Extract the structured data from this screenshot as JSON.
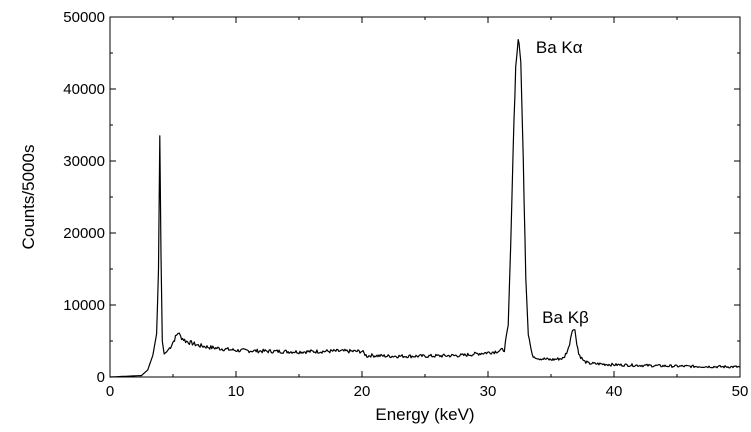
{
  "chart_data": {
    "type": "line",
    "xlabel": "Energy (keV)",
    "ylabel": "Counts/5000s",
    "xlim": [
      0,
      50
    ],
    "ylim": [
      0,
      50000
    ],
    "x_ticks": [
      0,
      10,
      20,
      30,
      40,
      50
    ],
    "y_ticks": [
      0,
      10000,
      20000,
      30000,
      40000,
      50000
    ],
    "grid": false,
    "series": [
      {
        "color": "#000000",
        "x": [
          0,
          2.5,
          3.0,
          3.4,
          3.7,
          3.85,
          3.95,
          4.05,
          4.15,
          4.3,
          4.5,
          4.8,
          5.2,
          5.4,
          5.6,
          6.0,
          7,
          8,
          10,
          12,
          15,
          18,
          20,
          20.4,
          20.7,
          22,
          25,
          28,
          29.5,
          30.5,
          31.3,
          31.6,
          31.8,
          32.0,
          32.2,
          32.4,
          32.6,
          32.8,
          33.0,
          33.2,
          33.5,
          34,
          35,
          36,
          36.4,
          36.7,
          36.9,
          37.2,
          37.6,
          38,
          40,
          45,
          50
        ],
        "y": [
          0,
          200,
          1000,
          3000,
          6000,
          15000,
          33500,
          17000,
          5000,
          3200,
          3500,
          4200,
          5500,
          6200,
          5600,
          5000,
          4400,
          4100,
          3700,
          3600,
          3500,
          3600,
          3550,
          2900,
          3000,
          2900,
          2900,
          3000,
          3300,
          3500,
          3800,
          7000,
          18000,
          32000,
          43000,
          47000,
          44000,
          30000,
          14000,
          6000,
          3000,
          2600,
          2400,
          2600,
          4000,
          6800,
          6400,
          3200,
          2200,
          1900,
          1700,
          1500,
          1400
        ]
      }
    ],
    "annotations": [
      {
        "text": "Ba Kα",
        "x": 33.8,
        "y": 45000
      },
      {
        "text": "Ba Kβ",
        "x": 34.3,
        "y": 7500
      }
    ]
  }
}
